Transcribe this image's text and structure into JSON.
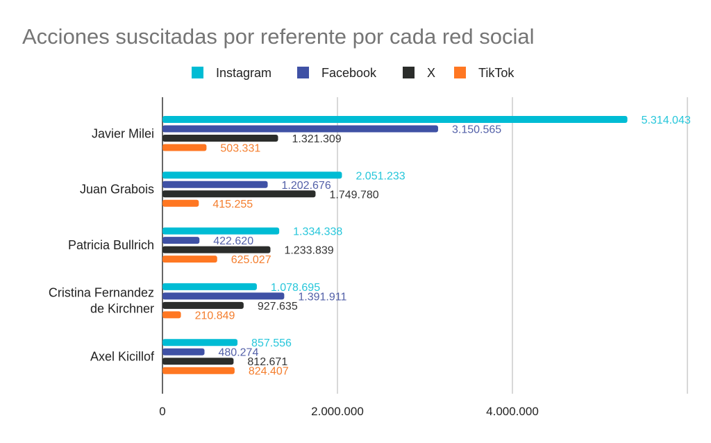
{
  "chart_data": {
    "type": "bar",
    "orientation": "horizontal",
    "title": "Acciones suscitadas por referente por cada red social",
    "xlabel": "",
    "ylabel": "",
    "xlim": [
      0,
      6000000
    ],
    "x_ticks": [
      0,
      2000000,
      4000000,
      6000000
    ],
    "x_tick_labels": [
      "0",
      "2.000.000",
      "4.000.000",
      ""
    ],
    "grid": true,
    "legend_position": "top",
    "categories": [
      [
        "Javier Milei"
      ],
      [
        "Juan Grabois"
      ],
      [
        "Patricia Bullrich"
      ],
      [
        "Cristina Fernandez",
        "de Kirchner"
      ],
      [
        "Axel Kicillof"
      ]
    ],
    "series": [
      {
        "name": "Instagram",
        "color": "#00BCD4",
        "label_color": "#26C6DA",
        "values": [
          5314043,
          2051233,
          1334338,
          1078695,
          857556
        ],
        "labels": [
          "5.314.043",
          "2.051.233",
          "1.334.338",
          "1.078.695",
          "857.556"
        ]
      },
      {
        "name": "Facebook",
        "color": "#3F51A5",
        "label_color": "#5360A8",
        "values": [
          3150565,
          1202676,
          422620,
          1391911,
          480274
        ],
        "labels": [
          "3.150.565",
          "1.202.676",
          "422.620",
          "1.391.911",
          "480.274"
        ]
      },
      {
        "name": "X",
        "color": "#2B2D2B",
        "label_color": "#333333",
        "values": [
          1321309,
          1749780,
          1233839,
          927635,
          812671
        ],
        "labels": [
          "1.321.309",
          "1.749.780",
          "1.233.839",
          "927.635",
          "812.671"
        ]
      },
      {
        "name": "TikTok",
        "color": "#FF7722",
        "label_color": "#F47E2E",
        "values": [
          503331,
          415255,
          625027,
          210849,
          824407
        ],
        "labels": [
          "503.331",
          "415.255",
          "625.027",
          "210.849",
          "824.407"
        ]
      }
    ]
  }
}
